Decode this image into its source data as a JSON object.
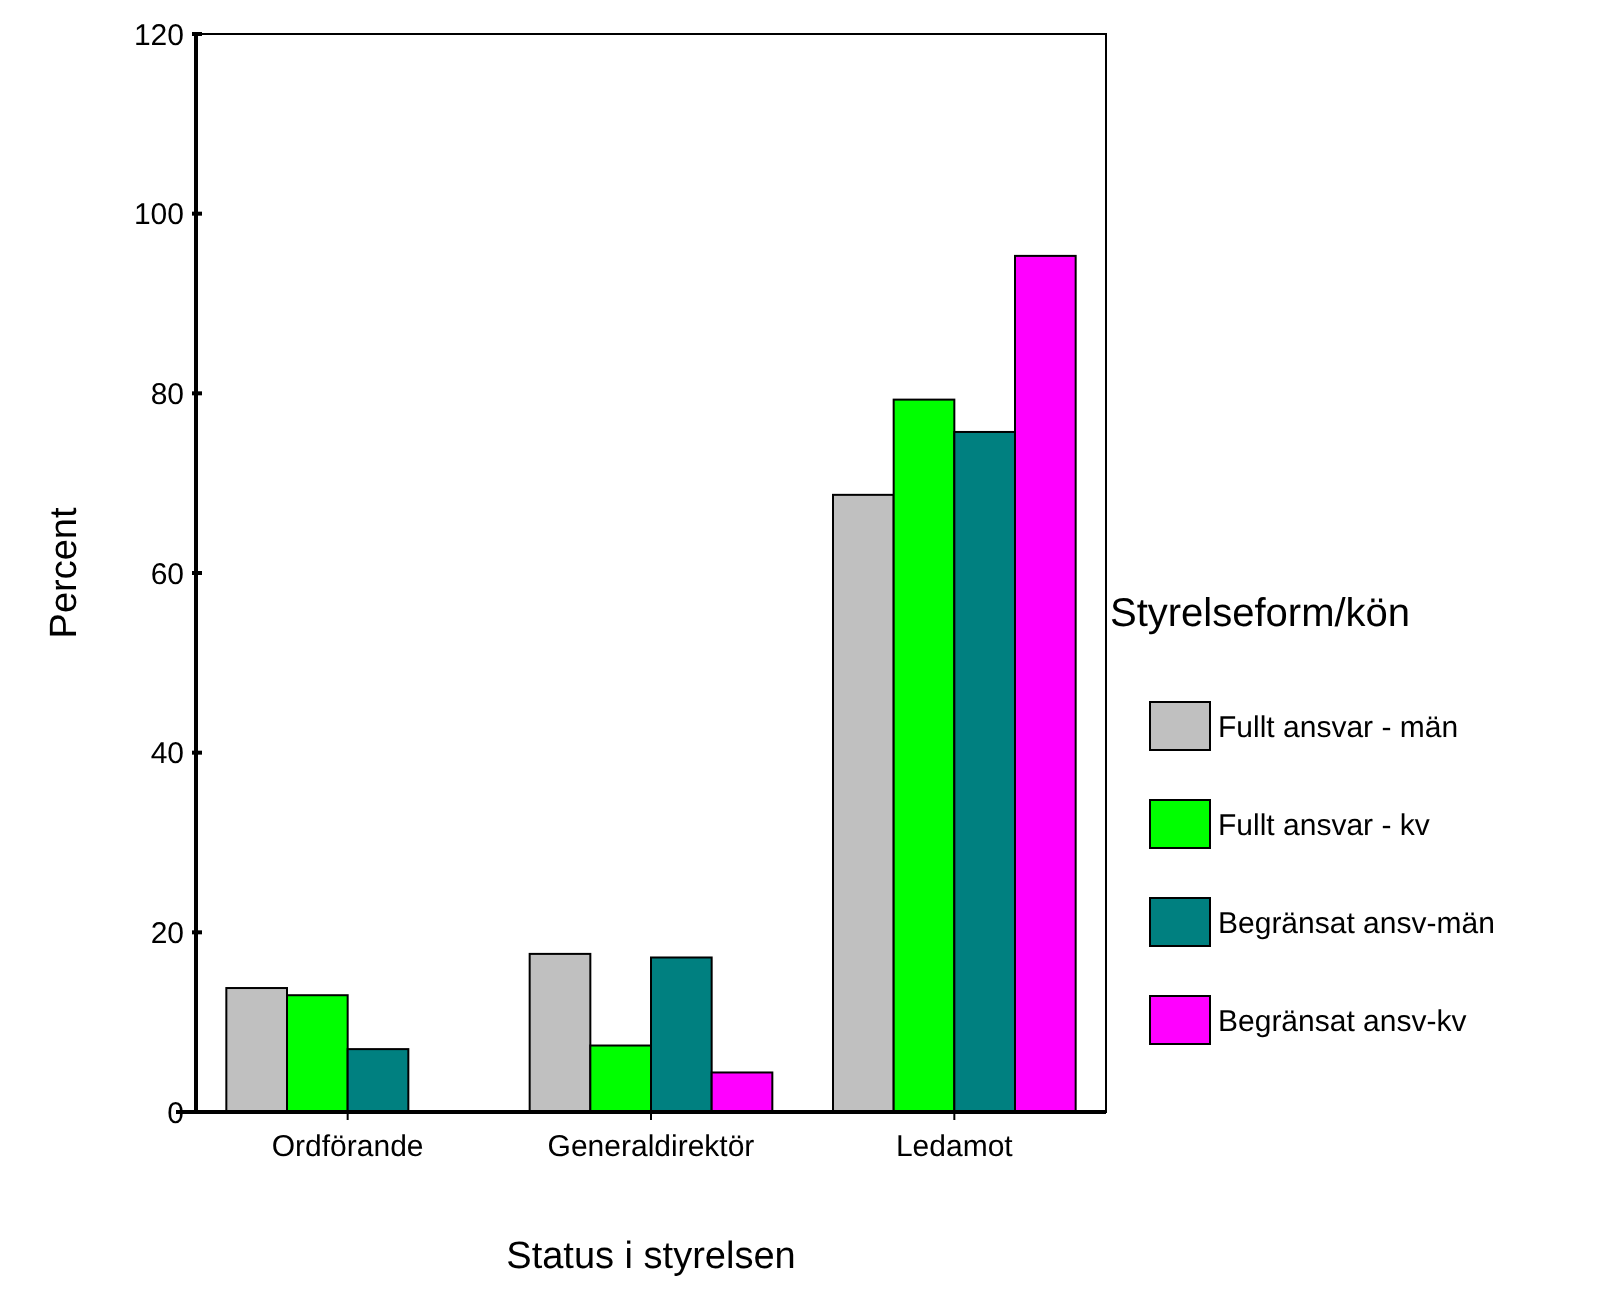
{
  "chart_data": {
    "type": "bar",
    "xlabel": "Status i styrelsen",
    "ylabel": "Percent",
    "legend_title": "Styrelseform/kön",
    "categories": [
      "Ordförande",
      "Generaldirektör",
      "Ledamot"
    ],
    "series": [
      {
        "name": "Fullt ansvar - män",
        "color": "#c0c0c0",
        "values": [
          13.8,
          17.6,
          68.7
        ]
      },
      {
        "name": "Fullt ansvar - kv",
        "color": "#00ff00",
        "values": [
          13.0,
          7.4,
          79.3
        ]
      },
      {
        "name": "Begränsat ansv-män",
        "color": "#008080",
        "values": [
          7.0,
          17.2,
          75.7
        ]
      },
      {
        "name": "Begränsat ansv-kv",
        "color": "#ff00ff",
        "values": [
          0,
          4.4,
          95.3
        ]
      }
    ],
    "ylim": [
      0,
      120
    ],
    "yticks": [
      0,
      20,
      40,
      60,
      80,
      100,
      120
    ],
    "grid": false,
    "legend": "right"
  }
}
